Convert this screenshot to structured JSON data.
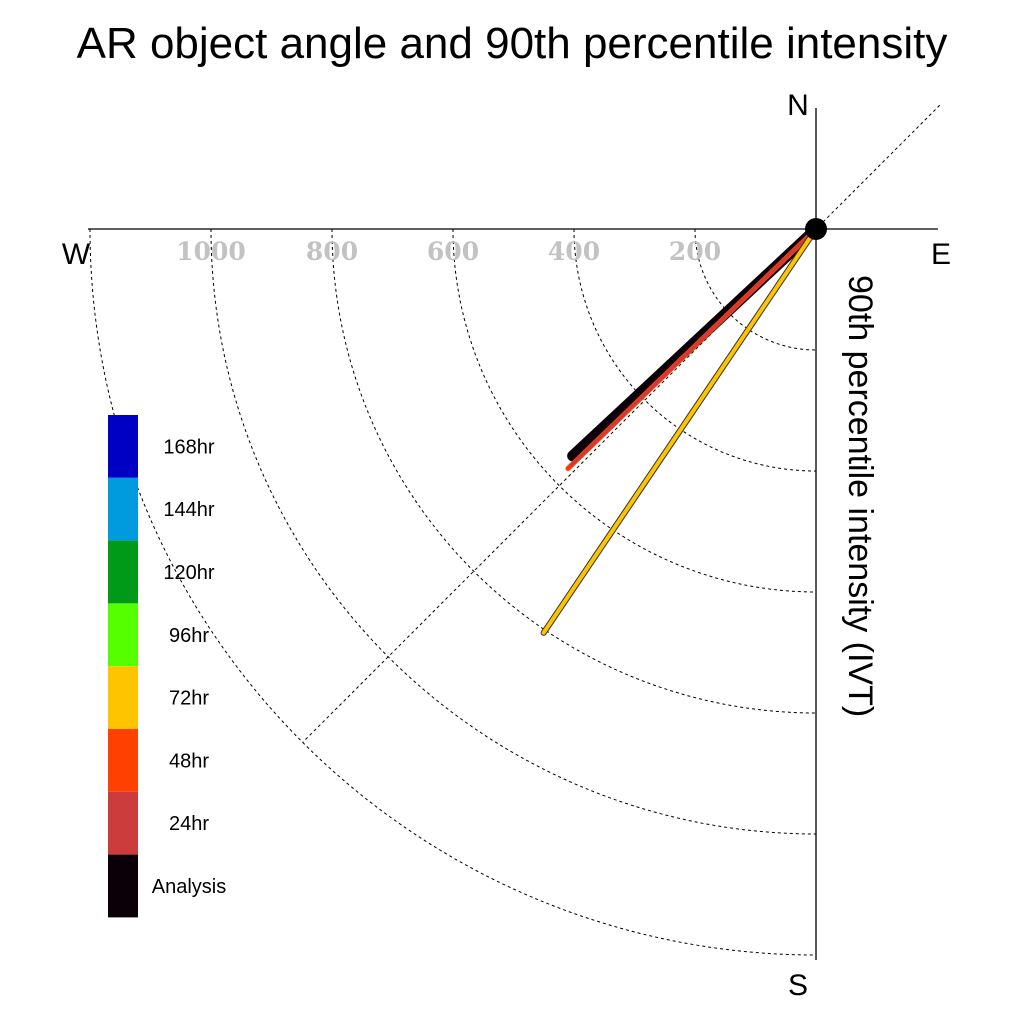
{
  "chart_data": {
    "type": "polar-vector",
    "title": "AR object angle and 90th percentile intensity",
    "ylabel": "90th percentile intensity (IVT)",
    "compass": {
      "north": "N",
      "south": "S",
      "east": "E",
      "west": "W"
    },
    "radial_ticks": [
      {
        "value": 200,
        "label": "200"
      },
      {
        "value": 400,
        "label": "400"
      },
      {
        "value": 600,
        "label": "600"
      },
      {
        "value": 800,
        "label": "800"
      },
      {
        "value": 1000,
        "label": "1000"
      }
    ],
    "rlim": [
      0,
      1200
    ],
    "diagonal_reference_angle_deg": 45,
    "grid": true,
    "legend_position": "left",
    "legend": [
      {
        "label": "168hr",
        "color": "#0000c4"
      },
      {
        "label": "144hr",
        "color": "#009ade"
      },
      {
        "label": "120hr",
        "color": "#009a18"
      },
      {
        "label": "96hr",
        "color": "#55ff00"
      },
      {
        "label": "72hr",
        "color": "#ffc400"
      },
      {
        "label": "48hr",
        "color": "#ff4000"
      },
      {
        "label": "24hr",
        "color": "#cc3c3c"
      },
      {
        "label": "Analysis",
        "color": "#0c0008"
      }
    ],
    "series": [
      {
        "name": "72hr",
        "color": "#ffc400",
        "angle_deg": 214,
        "value": 805
      },
      {
        "name": "48hr",
        "color": "#ff4000",
        "angle_deg": 226,
        "value": 570
      },
      {
        "name": "24hr",
        "color": "#cc3c3c",
        "angle_deg": 226,
        "value": 563
      },
      {
        "name": "Analysis",
        "color": "#0c0008",
        "angle_deg": 227,
        "value": 550
      }
    ]
  }
}
